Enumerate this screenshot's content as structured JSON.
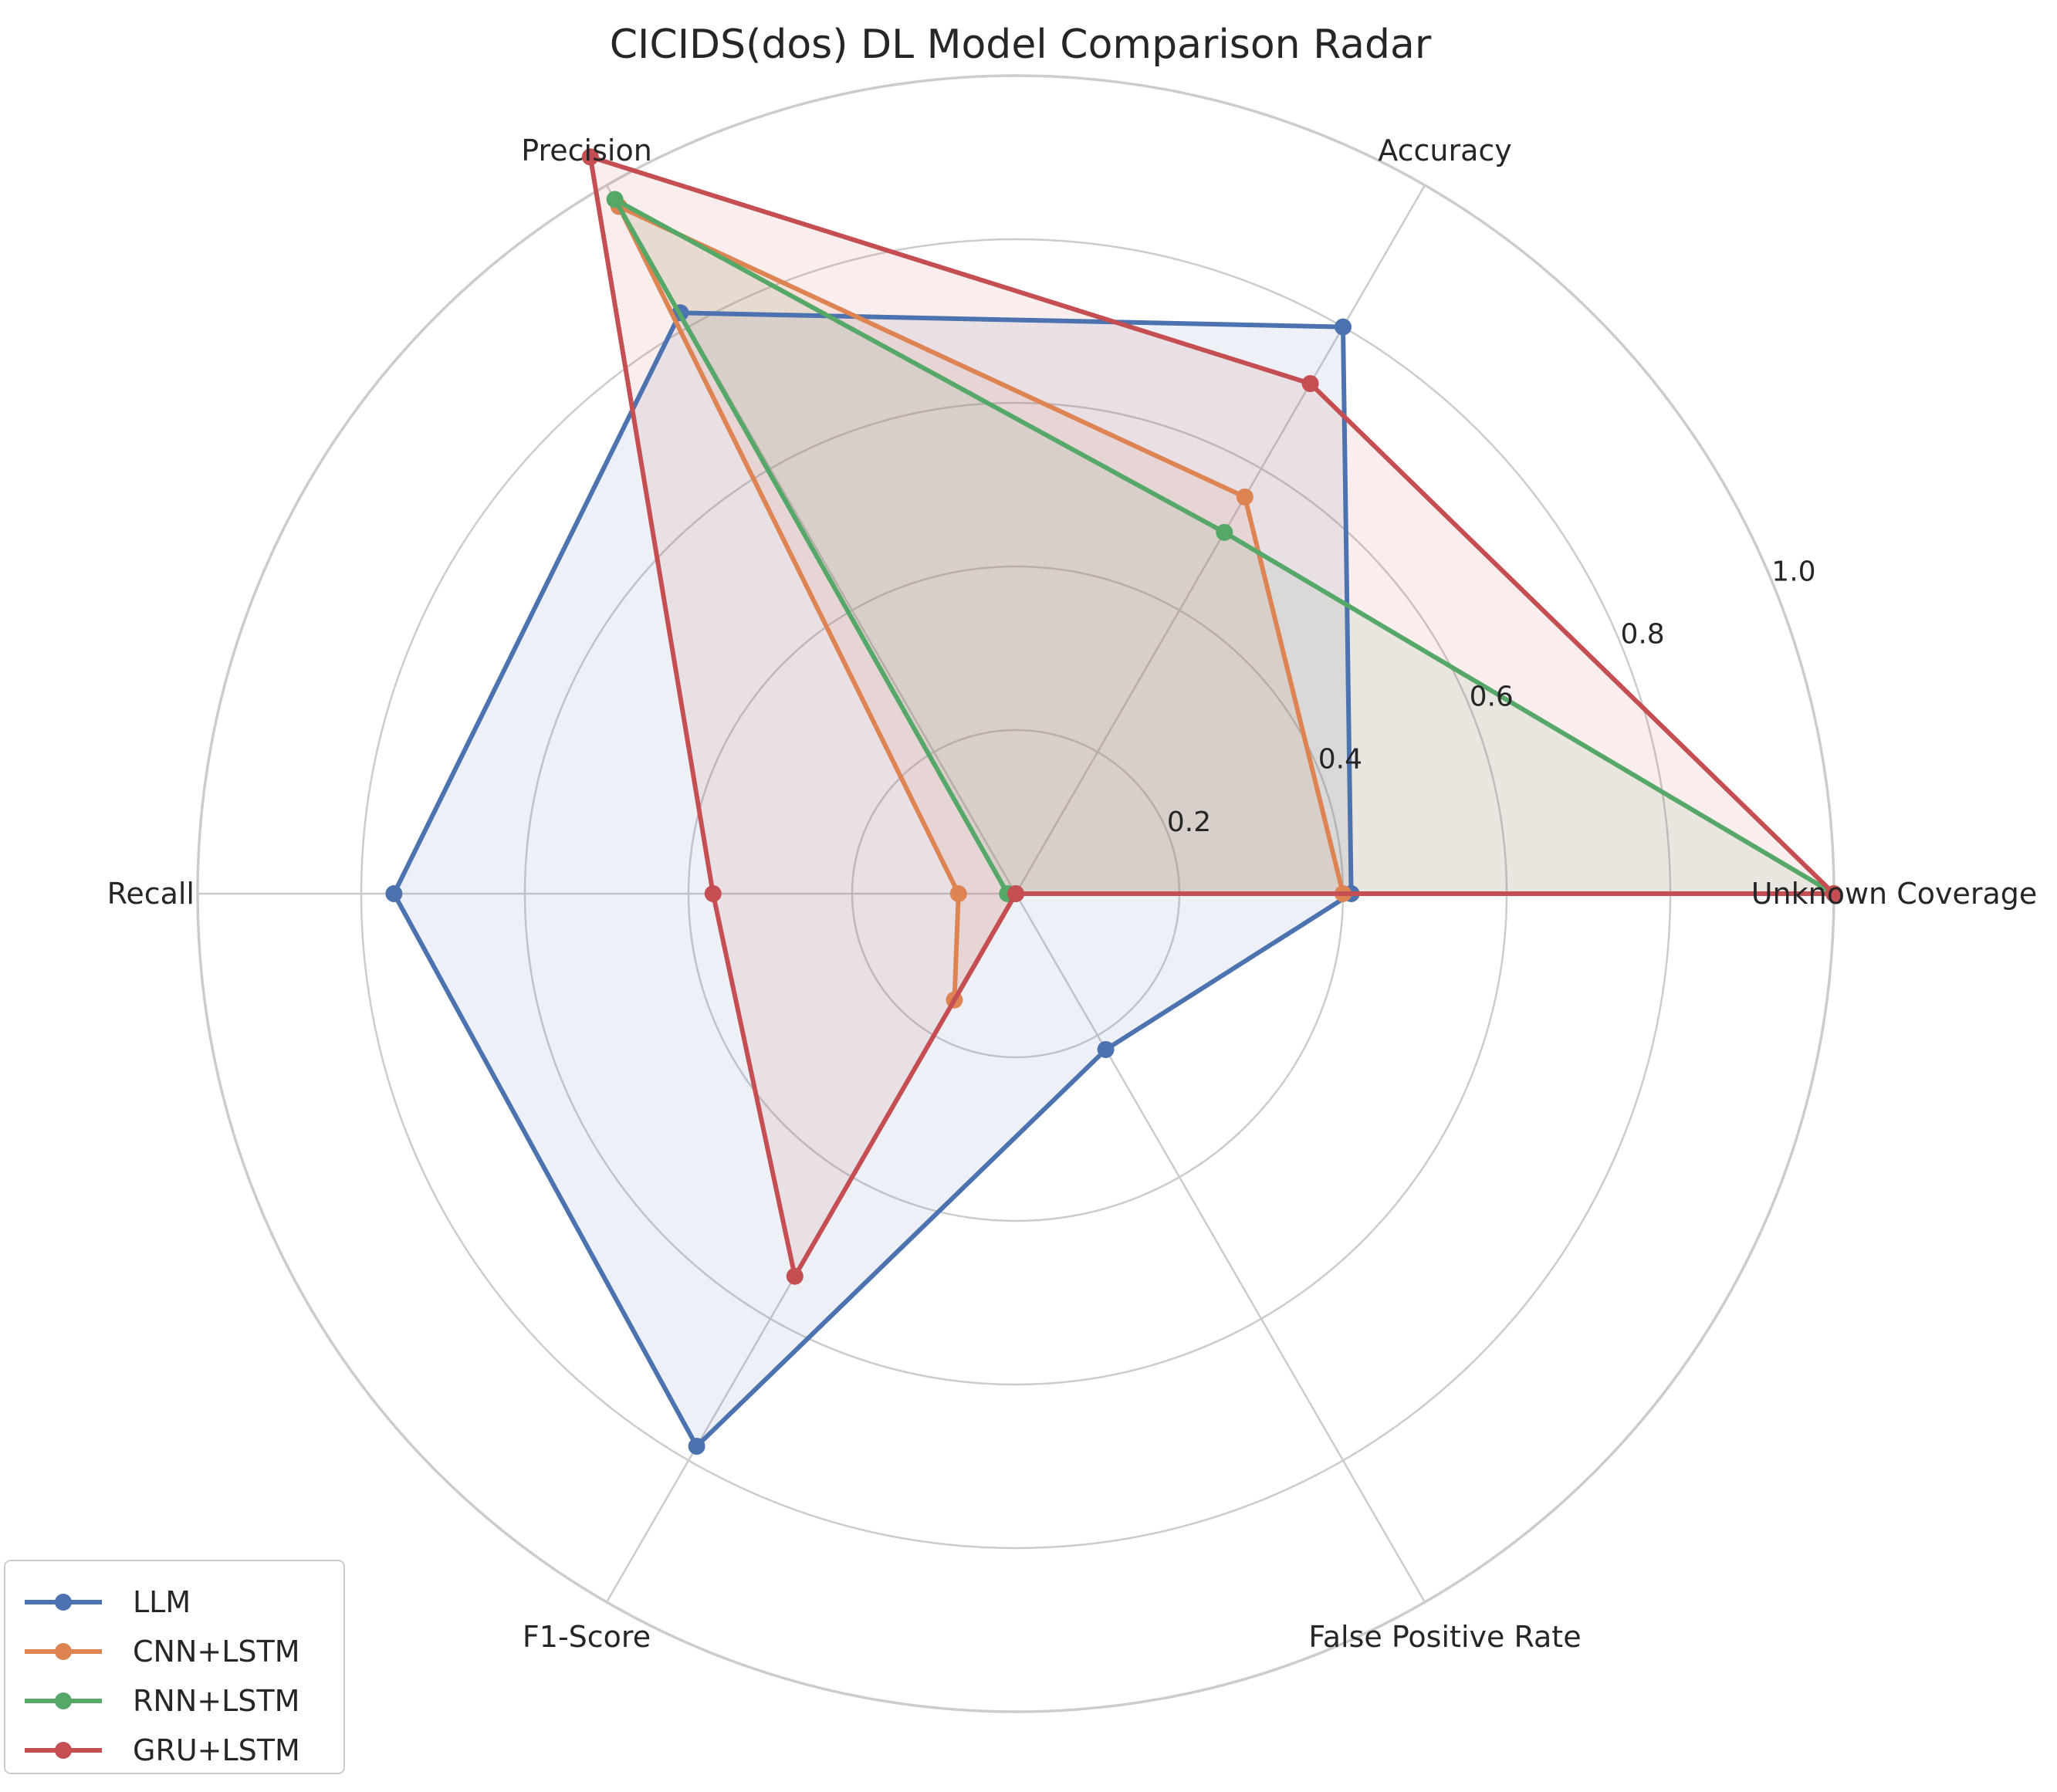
{
  "chart_data": {
    "type": "radar",
    "title": "CICIDS(dos) DL Model Comparison Radar",
    "axes": [
      "Unknown Coverage",
      "Accuracy",
      "Precision",
      "Recall",
      "F1-Score",
      "False Positive Rate"
    ],
    "rlim": [
      0,
      1.0
    ],
    "rticks": [
      "0.2",
      "0.4",
      "0.6",
      "0.8",
      "1.0"
    ],
    "grid": true,
    "legend_position": "bottom-left",
    "series": [
      {
        "name": "LLM",
        "color": "#4c72b0",
        "values": [
          0.41,
          0.8,
          0.82,
          0.76,
          0.78,
          0.22
        ]
      },
      {
        "name": "CNN+LSTM",
        "color": "#dd8452",
        "values": [
          0.4,
          0.56,
          0.97,
          0.07,
          0.15,
          0.0
        ]
      },
      {
        "name": "RNN+LSTM",
        "color": "#55a868",
        "values": [
          1.0,
          0.51,
          0.98,
          0.01,
          0.0,
          0.0
        ]
      },
      {
        "name": "GRU+LSTM",
        "color": "#c44e52",
        "values": [
          1.0,
          0.72,
          1.04,
          0.37,
          0.54,
          0.0
        ]
      }
    ]
  }
}
